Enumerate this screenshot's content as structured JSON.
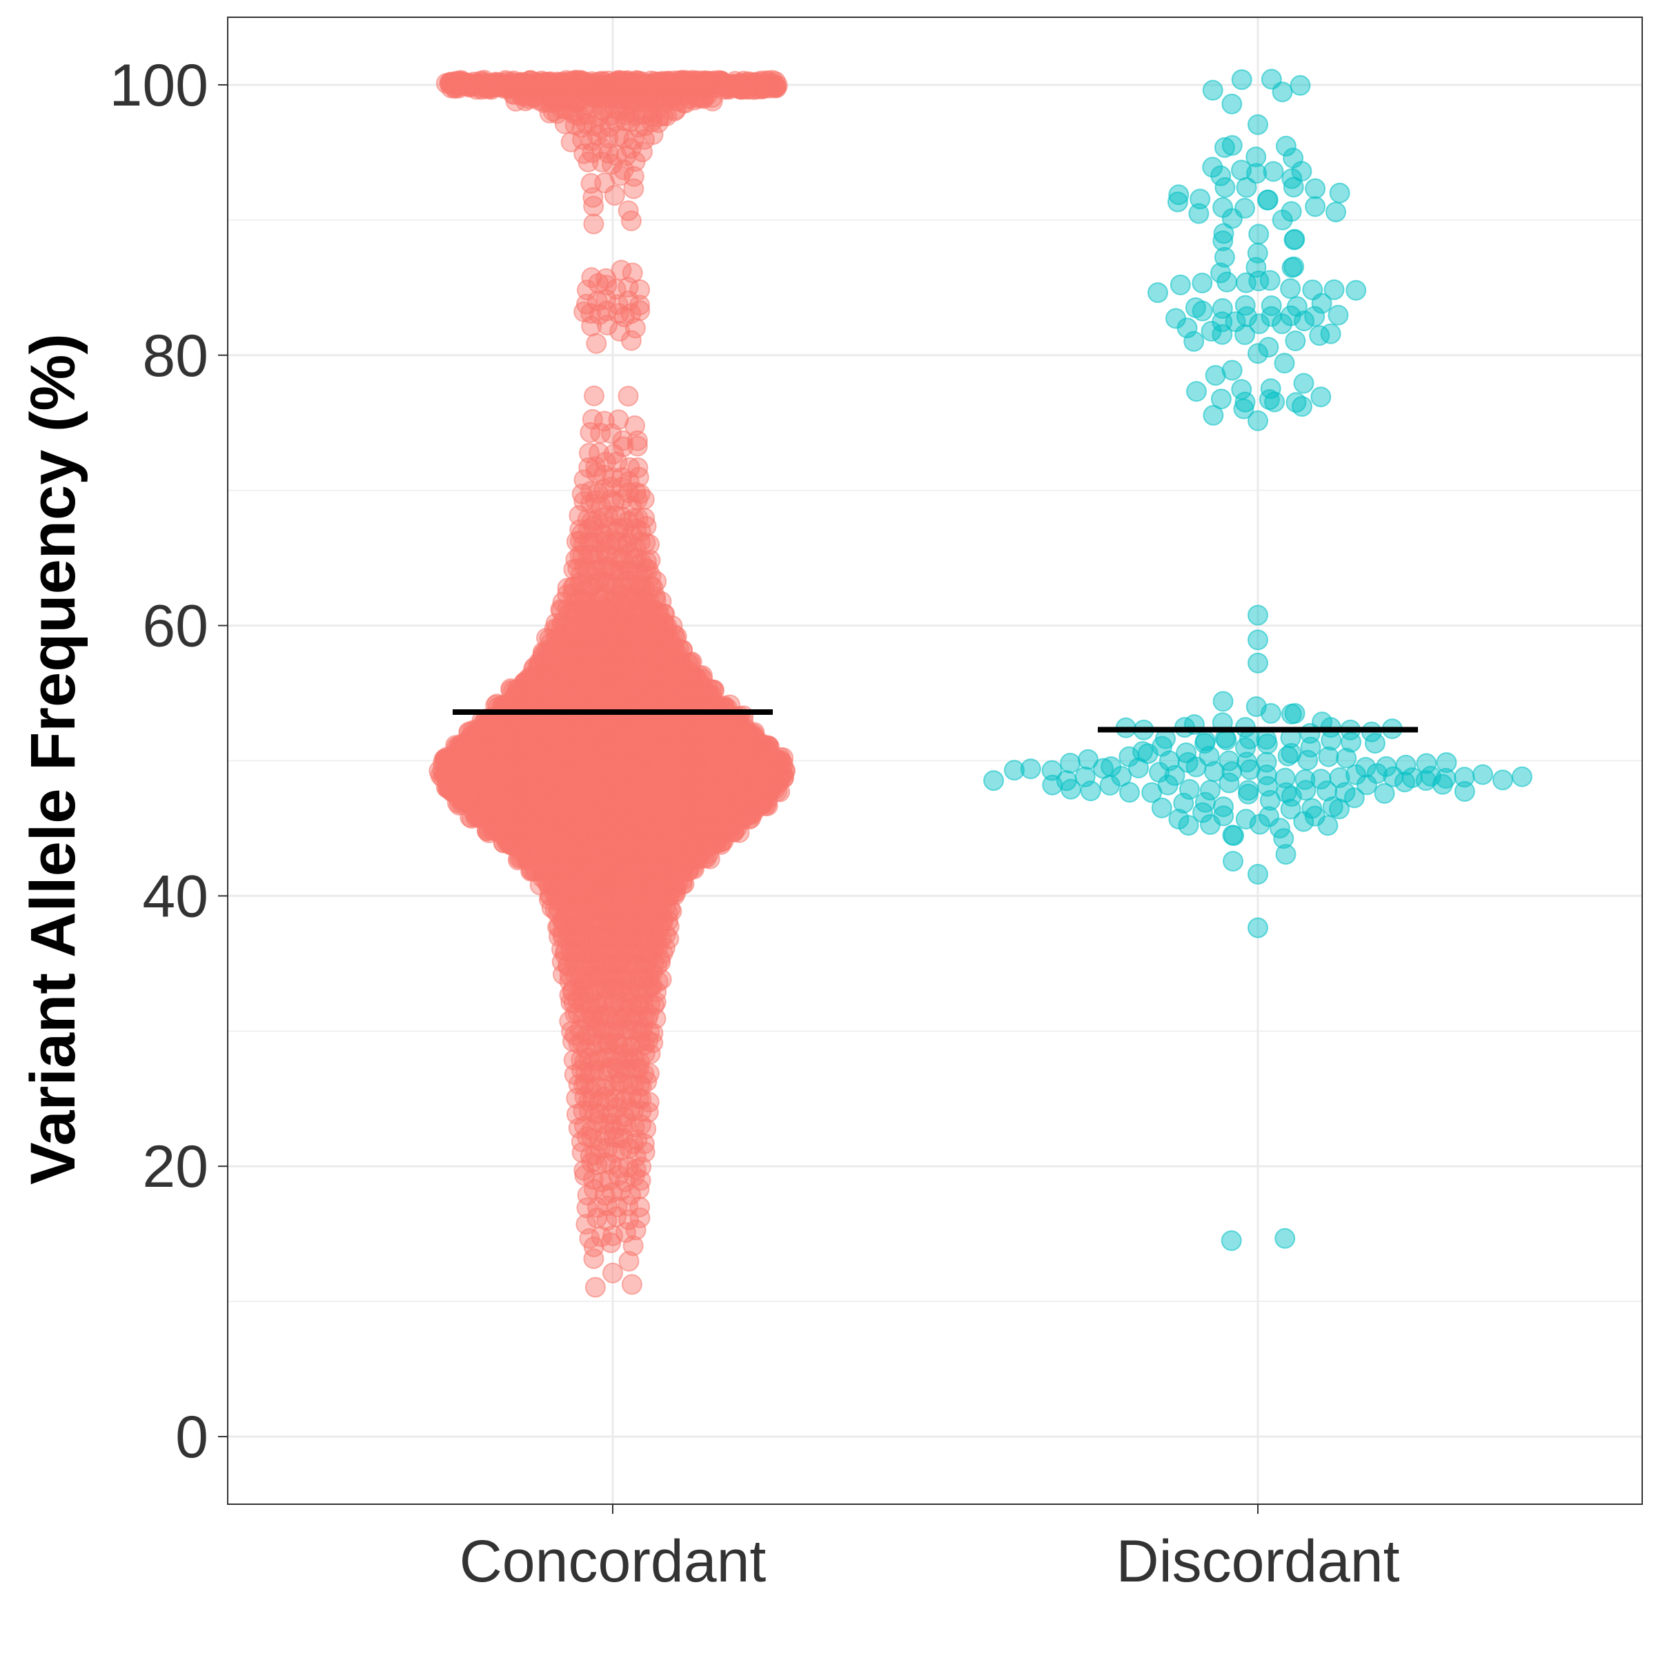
{
  "chart_data": {
    "type": "scatter",
    "subtype": "beeswarm",
    "title": "",
    "xlabel": "",
    "ylabel": "Variant Allele Frequency (%)",
    "ylim": [
      -5,
      105
    ],
    "yticks": [
      0,
      20,
      40,
      60,
      80,
      100
    ],
    "grid": true,
    "legend": "none",
    "categories": [
      "Concordant",
      "Discordant"
    ],
    "series": [
      {
        "category": "Concordant",
        "color": "#F8766D",
        "mean": 53.6,
        "distribution": [
          [
            100,
            420
          ],
          [
            99,
            80
          ],
          [
            98,
            30
          ],
          [
            97,
            14
          ],
          [
            96,
            10
          ],
          [
            95,
            8
          ],
          [
            94,
            5
          ],
          [
            93,
            4
          ],
          [
            92,
            3
          ],
          [
            91,
            2
          ],
          [
            90,
            2
          ],
          [
            86,
            4
          ],
          [
            85,
            6
          ],
          [
            84,
            6
          ],
          [
            83,
            8
          ],
          [
            82,
            4
          ],
          [
            81,
            2
          ],
          [
            77,
            2
          ],
          [
            75,
            4
          ],
          [
            74,
            5
          ],
          [
            73,
            5
          ],
          [
            72,
            6
          ],
          [
            71,
            7
          ],
          [
            70,
            9
          ],
          [
            69,
            10
          ],
          [
            68,
            12
          ],
          [
            67,
            14
          ],
          [
            66,
            16
          ],
          [
            65,
            18
          ],
          [
            64,
            20
          ],
          [
            63,
            25
          ],
          [
            62,
            30
          ],
          [
            61,
            38
          ],
          [
            60,
            48
          ],
          [
            59,
            60
          ],
          [
            58,
            75
          ],
          [
            57,
            95
          ],
          [
            56,
            125
          ],
          [
            55,
            160
          ],
          [
            54,
            210
          ],
          [
            53,
            270
          ],
          [
            52,
            330
          ],
          [
            51,
            400
          ],
          [
            50,
            470
          ],
          [
            49,
            490
          ],
          [
            48,
            450
          ],
          [
            47,
            390
          ],
          [
            46,
            320
          ],
          [
            45,
            250
          ],
          [
            44,
            190
          ],
          [
            43,
            140
          ],
          [
            42,
            100
          ],
          [
            41,
            75
          ],
          [
            40,
            60
          ],
          [
            39,
            50
          ],
          [
            38,
            44
          ],
          [
            37,
            40
          ],
          [
            36,
            36
          ],
          [
            35,
            32
          ],
          [
            34,
            30
          ],
          [
            33,
            26
          ],
          [
            32,
            24
          ],
          [
            31,
            22
          ],
          [
            30,
            20
          ],
          [
            29,
            18
          ],
          [
            28,
            17
          ],
          [
            27,
            16
          ],
          [
            26,
            15
          ],
          [
            25,
            14
          ],
          [
            24,
            13
          ],
          [
            23,
            12
          ],
          [
            22,
            11
          ],
          [
            21,
            10
          ],
          [
            20,
            9
          ],
          [
            19,
            8
          ],
          [
            18,
            7
          ],
          [
            17,
            6
          ],
          [
            16,
            6
          ],
          [
            15,
            5
          ],
          [
            14,
            3
          ],
          [
            13,
            2
          ],
          [
            12,
            1
          ],
          [
            11,
            2
          ]
        ]
      },
      {
        "category": "Discordant",
        "color": "#00BFC4",
        "mean": 52.3,
        "distribution": [
          [
            100,
            4
          ],
          [
            99,
            2
          ],
          [
            97,
            1
          ],
          [
            96,
            2
          ],
          [
            95,
            3
          ],
          [
            94,
            4
          ],
          [
            93,
            3
          ],
          [
            92,
            8
          ],
          [
            91,
            8
          ],
          [
            90,
            2
          ],
          [
            89,
            3
          ],
          [
            88,
            3
          ],
          [
            87,
            3
          ],
          [
            86,
            3
          ],
          [
            85,
            10
          ],
          [
            84,
            6
          ],
          [
            83,
            8
          ],
          [
            82,
            7
          ],
          [
            81,
            6
          ],
          [
            80,
            1
          ],
          [
            79,
            2
          ],
          [
            78,
            4
          ],
          [
            77,
            6
          ],
          [
            76,
            4
          ],
          [
            75,
            1
          ],
          [
            61,
            1
          ],
          [
            59,
            1
          ],
          [
            57,
            1
          ],
          [
            54,
            3
          ],
          [
            53,
            6
          ],
          [
            52,
            14
          ],
          [
            51,
            12
          ],
          [
            50,
            20
          ],
          [
            49,
            30
          ],
          [
            48,
            22
          ],
          [
            47,
            10
          ],
          [
            46,
            8
          ],
          [
            45,
            7
          ],
          [
            44,
            2
          ],
          [
            43,
            2
          ],
          [
            42,
            1
          ],
          [
            37.5,
            1
          ],
          [
            15,
            2
          ]
        ]
      }
    ]
  }
}
